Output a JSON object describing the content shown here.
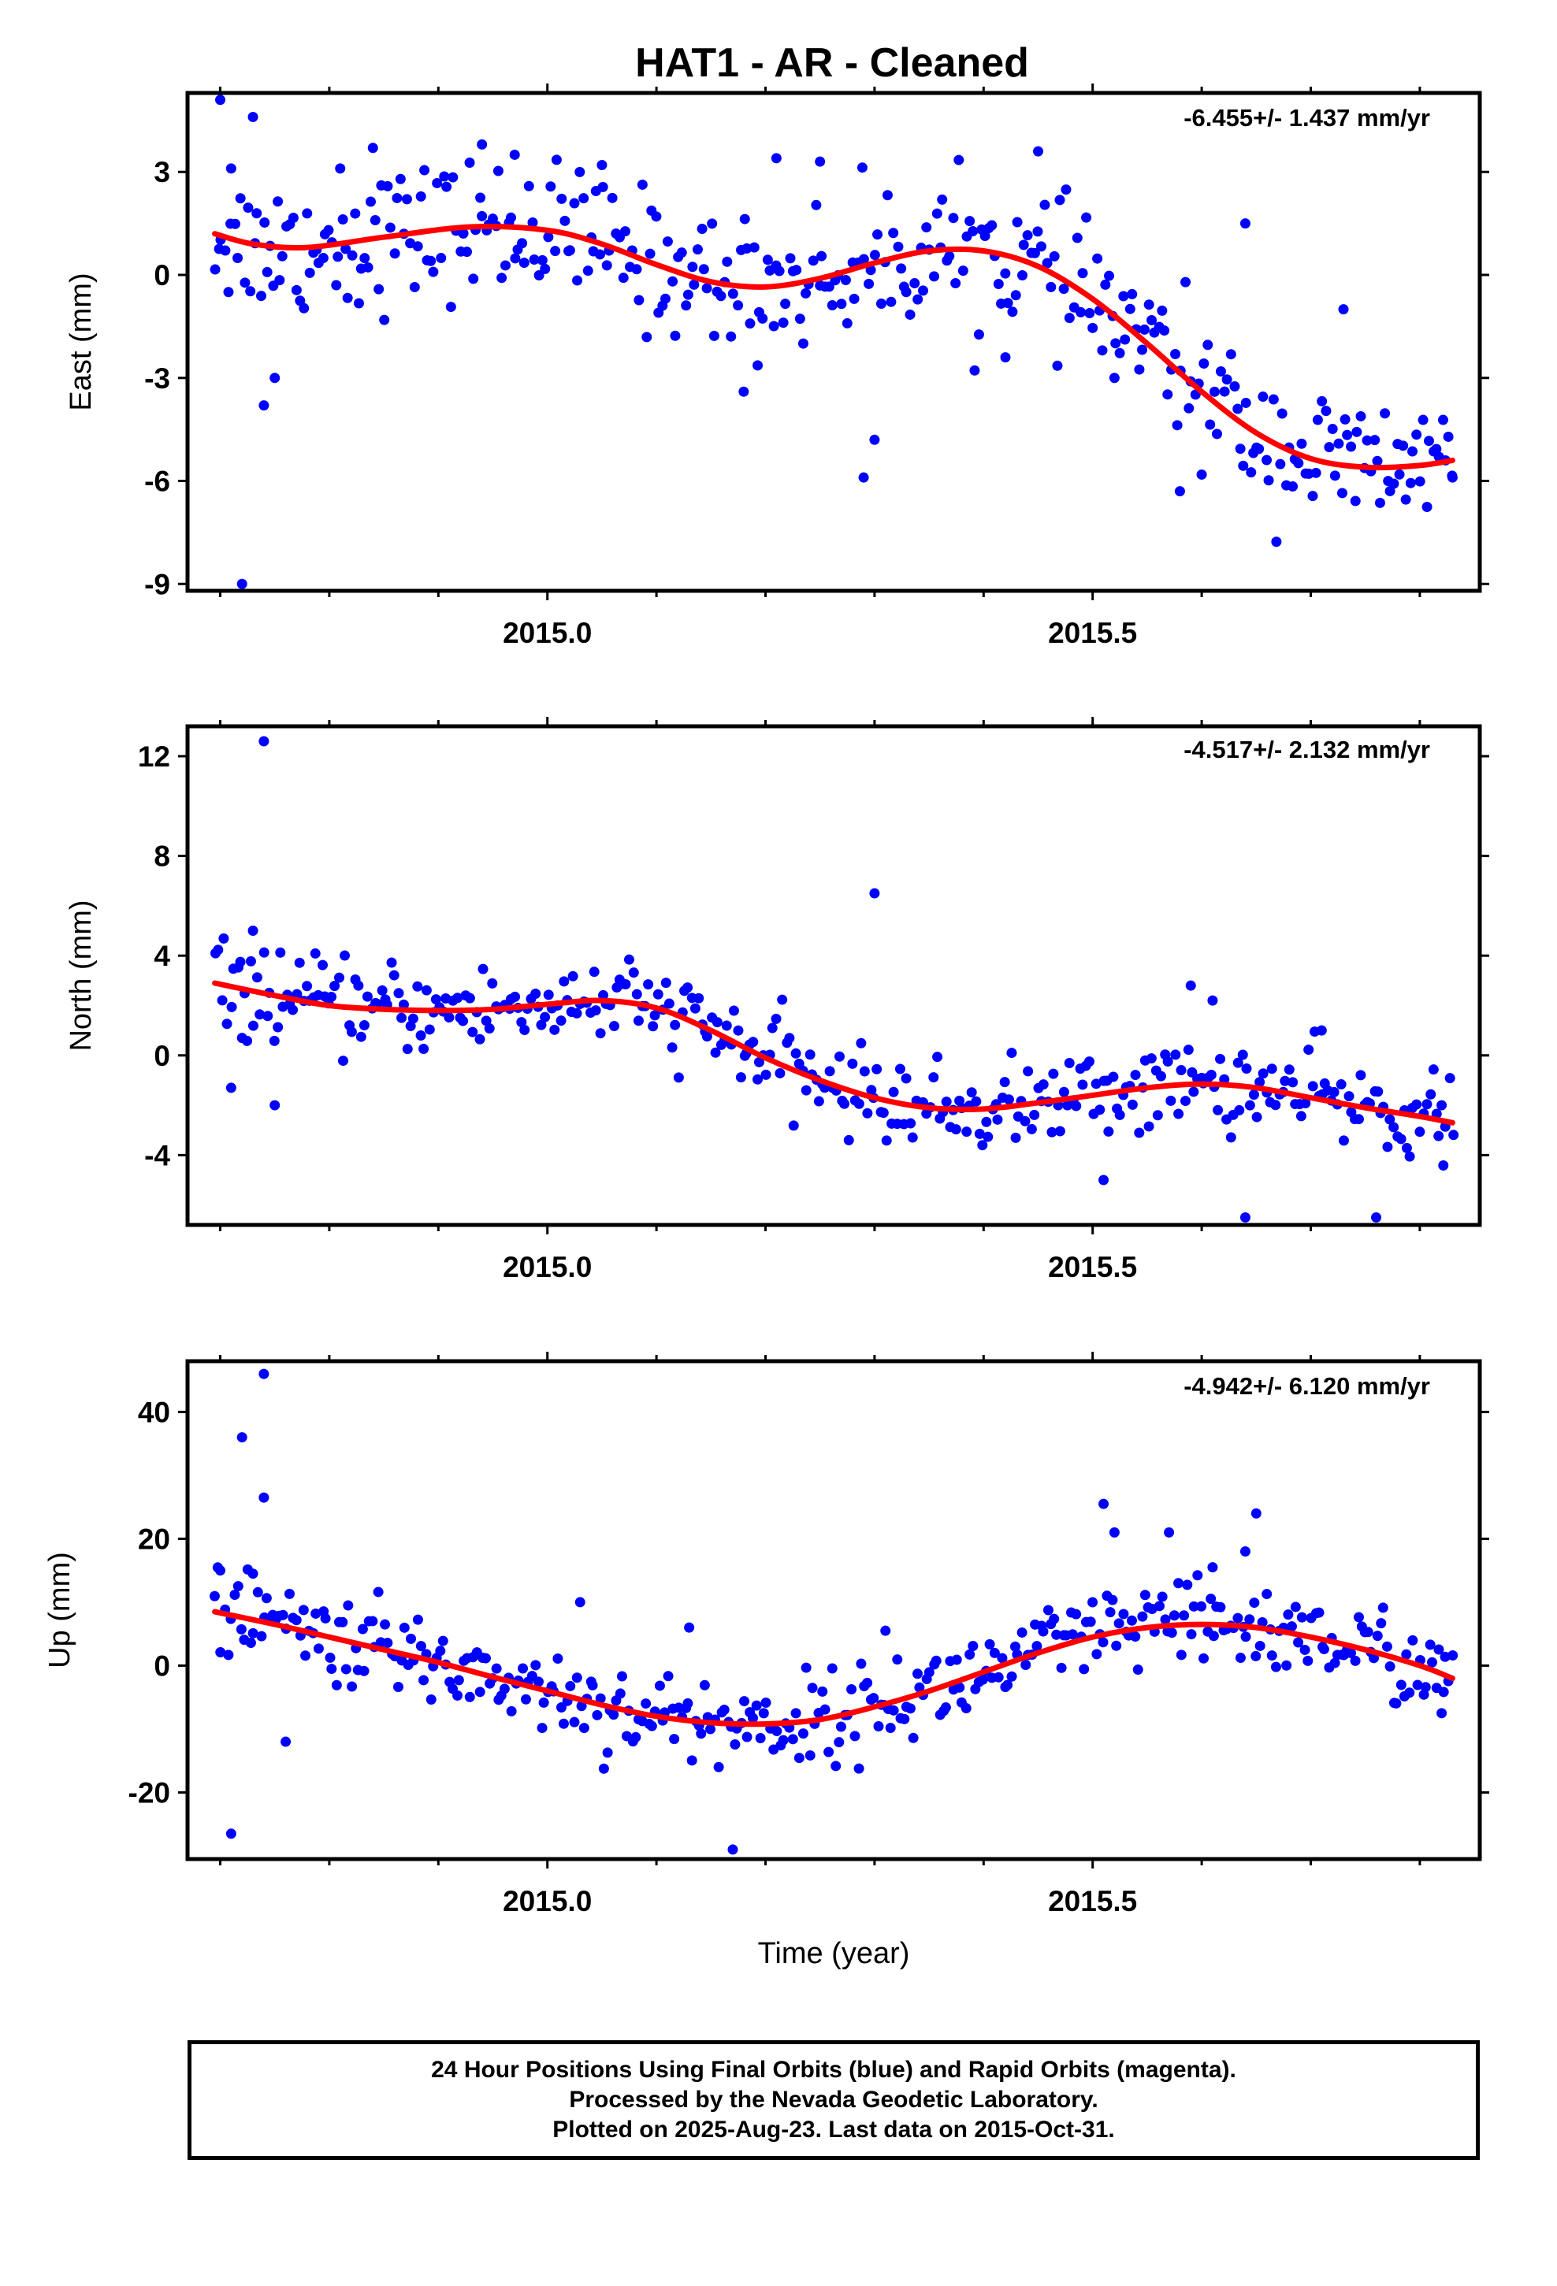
{
  "title": "HAT1  - AR - Cleaned",
  "xlabel": "Time (year)",
  "footer": {
    "line1": "24 Hour Positions Using Final Orbits (blue) and Rapid Orbits (magenta).",
    "line2": "Processed by the Nevada Geodetic Laboratory.",
    "line3": "Plotted on 2025-Aug-23. Last data on 2015-Oct-31."
  },
  "colors": {
    "points": "#0000ff",
    "fit": "#ff0000",
    "frame": "#000000"
  },
  "chart_data": [
    {
      "type": "scatter",
      "ylabel": "East (mm)",
      "rate_label": "-6.455+/- 1.437 mm/yr",
      "xlim": [
        2014.67,
        2015.855
      ],
      "ylim": [
        -9.2,
        5.3
      ],
      "xticks": [
        2015.0,
        2015.5
      ],
      "xtick_labels": [
        "2015.0",
        "2015.5"
      ],
      "xminor": [
        2014.7,
        2014.8,
        2014.9,
        2015.1,
        2015.2,
        2015.3,
        2015.4,
        2015.6,
        2015.7,
        2015.8
      ],
      "yticks": [
        3,
        0,
        -3,
        -6,
        -9
      ],
      "ytick_labels": [
        "3",
        "0",
        "-3",
        "-6",
        "-9"
      ],
      "fit_x": [
        2014.695,
        2014.73,
        2014.78,
        2014.85,
        2014.93,
        2015.0,
        2015.05,
        2015.1,
        2015.15,
        2015.2,
        2015.25,
        2015.3,
        2015.35,
        2015.4,
        2015.45,
        2015.5,
        2015.55,
        2015.6,
        2015.65,
        2015.7,
        2015.75,
        2015.8,
        2015.83
      ],
      "fit_y": [
        1.2,
        0.9,
        0.8,
        1.1,
        1.4,
        1.3,
        0.9,
        0.3,
        -0.2,
        -0.35,
        -0.1,
        0.35,
        0.7,
        0.7,
        0.25,
        -0.7,
        -2.0,
        -3.4,
        -4.6,
        -5.35,
        -5.6,
        -5.55,
        -5.4
      ],
      "outliers": {
        "x": [
          2014.7,
          2014.72,
          2014.73,
          2014.74,
          2014.75,
          2014.81,
          2014.84,
          2014.94,
          2014.97,
          2015.05,
          2015.18,
          2015.21,
          2015.29,
          2015.3,
          2015.42,
          2015.52,
          2015.58,
          2015.64,
          2015.73,
          2015.83,
          2014.71,
          2015.25,
          2015.45
        ],
        "y": [
          5.1,
          -9.0,
          4.6,
          -3.8,
          -3.0,
          3.1,
          3.7,
          3.8,
          3.5,
          3.2,
          -3.4,
          3.4,
          -5.9,
          -4.8,
          -2.4,
          -3.0,
          -6.3,
          1.5,
          -1.0,
          -5.9,
          3.1,
          3.3,
          3.6
        ]
      }
    },
    {
      "type": "scatter",
      "ylabel": "North (mm)",
      "rate_label": "-4.517+/- 2.132 mm/yr",
      "xlim": [
        2014.67,
        2015.855
      ],
      "ylim": [
        -6.8,
        13.2
      ],
      "xticks": [
        2015.0,
        2015.5
      ],
      "xtick_labels": [
        "2015.0",
        "2015.5"
      ],
      "xminor": [
        2014.7,
        2014.8,
        2014.9,
        2015.1,
        2015.2,
        2015.3,
        2015.4,
        2015.6,
        2015.7,
        2015.8
      ],
      "yticks": [
        12,
        8,
        4,
        0,
        -4
      ],
      "ytick_labels": [
        "12",
        "8",
        "4",
        "0",
        "-4"
      ],
      "fit_x": [
        2014.695,
        2014.75,
        2014.8,
        2014.85,
        2014.9,
        2014.95,
        2015.0,
        2015.05,
        2015.1,
        2015.15,
        2015.2,
        2015.25,
        2015.3,
        2015.35,
        2015.4,
        2015.45,
        2015.5,
        2015.55,
        2015.6,
        2015.65,
        2015.7,
        2015.75,
        2015.8,
        2015.83
      ],
      "fit_y": [
        2.9,
        2.4,
        2.0,
        1.85,
        1.8,
        1.85,
        2.05,
        2.2,
        1.9,
        1.0,
        -0.1,
        -1.0,
        -1.7,
        -2.1,
        -2.15,
        -1.9,
        -1.6,
        -1.3,
        -1.15,
        -1.3,
        -1.7,
        -2.1,
        -2.45,
        -2.7
      ],
      "outliers": {
        "x": [
          2014.74,
          2014.73,
          2014.75,
          2014.71,
          2014.72,
          2015.3,
          2015.64,
          2015.61,
          2015.59,
          2015.71,
          2015.76,
          2015.51,
          2015.82
        ],
        "y": [
          12.6,
          5.0,
          -2.0,
          -1.3,
          0.7,
          6.5,
          -6.5,
          2.2,
          2.8,
          1.0,
          -6.5,
          -5.0,
          -2.0
        ]
      }
    },
    {
      "type": "scatter",
      "ylabel": "Up (mm)",
      "rate_label": "-4.942+/- 6.120 mm/yr",
      "xlim": [
        2014.67,
        2015.855
      ],
      "ylim": [
        -30.5,
        48.0
      ],
      "xticks": [
        2015.0,
        2015.5
      ],
      "xtick_labels": [
        "2015.0",
        "2015.5"
      ],
      "xminor": [
        2014.7,
        2014.8,
        2014.9,
        2015.1,
        2015.2,
        2015.3,
        2015.4,
        2015.6,
        2015.7,
        2015.8
      ],
      "yticks": [
        40,
        20,
        0,
        -20
      ],
      "ytick_labels": [
        "40",
        "20",
        "0",
        "-20"
      ],
      "fit_x": [
        2014.695,
        2014.75,
        2014.8,
        2014.85,
        2014.9,
        2014.95,
        2015.0,
        2015.05,
        2015.1,
        2015.15,
        2015.2,
        2015.25,
        2015.3,
        2015.35,
        2015.4,
        2015.45,
        2015.5,
        2015.55,
        2015.6,
        2015.65,
        2015.7,
        2015.75,
        2015.8,
        2015.83
      ],
      "fit_y": [
        8.5,
        6.5,
        4.5,
        2.5,
        0.5,
        -1.8,
        -4.0,
        -6.2,
        -8.0,
        -9.0,
        -9.2,
        -8.5,
        -6.5,
        -4.0,
        -1.0,
        2.0,
        4.5,
        6.0,
        6.5,
        6.0,
        4.5,
        2.5,
        0.0,
        -2.0
      ],
      "outliers": {
        "x": [
          2014.74,
          2014.72,
          2014.74,
          2014.71,
          2014.73,
          2015.17,
          2015.51,
          2015.52,
          2015.57,
          2015.61,
          2015.65,
          2015.64,
          2014.76,
          2015.13,
          2015.31,
          2014.7,
          2015.03,
          2015.82
        ],
        "y": [
          46,
          36,
          26.5,
          -26.5,
          14.5,
          -29,
          25.5,
          21,
          21,
          15.5,
          24,
          18,
          -12,
          6.0,
          5.5,
          15.0,
          10.0,
          -7.5
        ]
      }
    }
  ]
}
